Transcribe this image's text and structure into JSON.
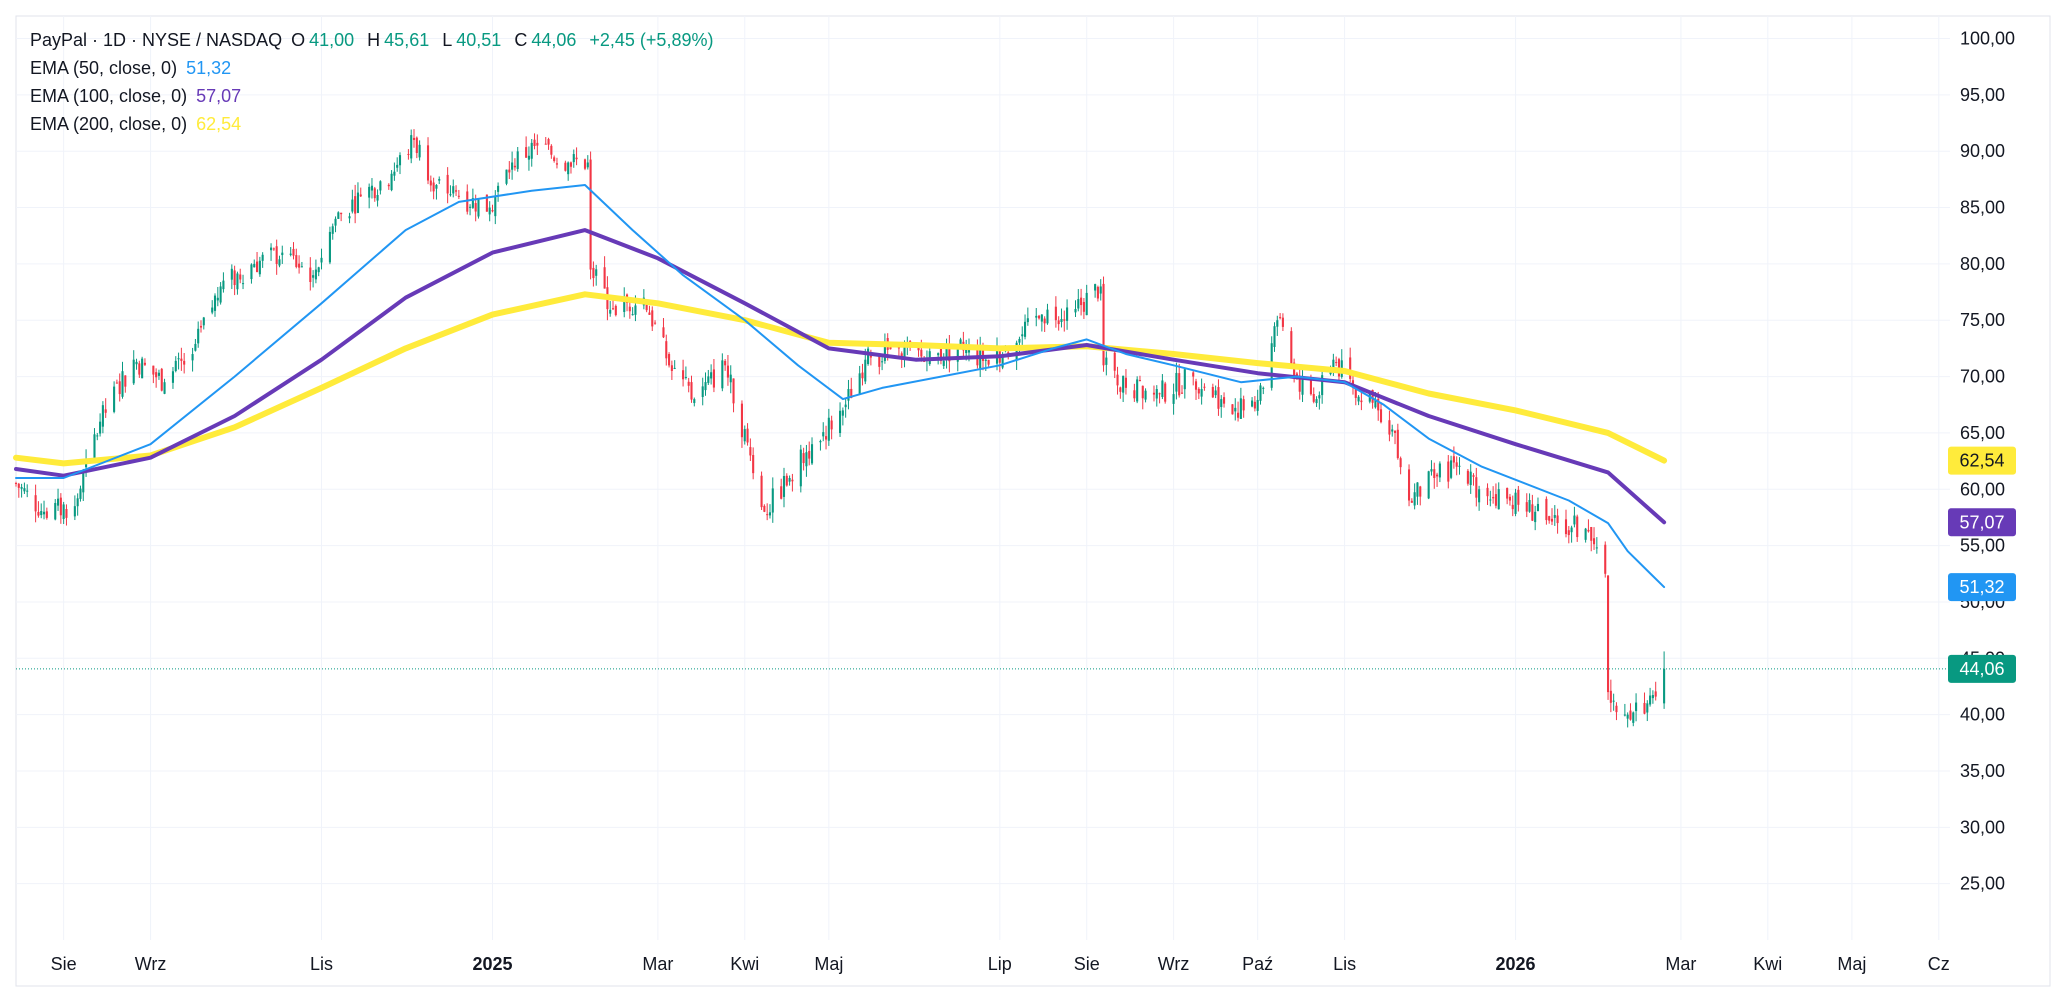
{
  "header": {
    "symbol_line": "PayPal · 1D · NYSE / NASDAQ",
    "ohlc": [
      {
        "key": "O",
        "value": "41,00"
      },
      {
        "key": "H",
        "value": "45,61"
      },
      {
        "key": "L",
        "value": "40,51"
      },
      {
        "key": "C",
        "value": "44,06"
      }
    ],
    "change": "+2,45 (+5,89%)"
  },
  "indicators": [
    {
      "label": "EMA (50, close, 0)",
      "value": "51,32",
      "color": "#2196f3"
    },
    {
      "label": "EMA (100, close, 0)",
      "value": "57,07",
      "color": "#673ab7"
    },
    {
      "label": "EMA (200, close, 0)",
      "value": "62,54",
      "color": "#ffeb3b"
    }
  ],
  "price_tags": [
    {
      "label": "62,54",
      "value": 62.54,
      "bg": "#ffeb3b",
      "fg": "#131722"
    },
    {
      "label": "57,07",
      "value": 57.07,
      "bg": "#673ab7",
      "fg": "#ffffff"
    },
    {
      "label": "51,32",
      "value": 51.32,
      "bg": "#2196f3",
      "fg": "#ffffff"
    },
    {
      "label": "44,06",
      "value": 44.06,
      "bg": "#089981",
      "fg": "#ffffff"
    }
  ],
  "colors": {
    "up": "#089981",
    "down": "#f23645",
    "grid": "#f0f3fa",
    "text": "#131722"
  },
  "chart_data": {
    "type": "candlestick",
    "grid": true,
    "y_axis": {
      "position": "right",
      "ylim": [
        20,
        102
      ],
      "ticks": [
        {
          "v": 100,
          "label": "100,00"
        },
        {
          "v": 95,
          "label": "95,00"
        },
        {
          "v": 90,
          "label": "90,00"
        },
        {
          "v": 85,
          "label": "85,00"
        },
        {
          "v": 80,
          "label": "80,00"
        },
        {
          "v": 75,
          "label": "75,00"
        },
        {
          "v": 70,
          "label": "70,00"
        },
        {
          "v": 65,
          "label": "65,00"
        },
        {
          "v": 60,
          "label": "60,00"
        },
        {
          "v": 55,
          "label": "55,00"
        },
        {
          "v": 50,
          "label": "50,00"
        },
        {
          "v": 45,
          "label": "45,00"
        },
        {
          "v": 40,
          "label": "40,00"
        },
        {
          "v": 35,
          "label": "35,00"
        },
        {
          "v": 30,
          "label": "30,00"
        },
        {
          "v": 25,
          "label": "25,00"
        }
      ]
    },
    "x_axis": {
      "domain": [
        "2024-07-15",
        "2026-06-05"
      ],
      "ticks": [
        {
          "date": "2024-08-01",
          "label": "Sie",
          "bold": false
        },
        {
          "date": "2024-09-01",
          "label": "Wrz",
          "bold": false
        },
        {
          "date": "2024-11-01",
          "label": "Lis",
          "bold": false
        },
        {
          "date": "2025-01-01",
          "label": "2025",
          "bold": true
        },
        {
          "date": "2025-03-01",
          "label": "Mar",
          "bold": false
        },
        {
          "date": "2025-04-01",
          "label": "Kwi",
          "bold": false
        },
        {
          "date": "2025-05-01",
          "label": "Maj",
          "bold": false
        },
        {
          "date": "2025-07-01",
          "label": "Lip",
          "bold": false
        },
        {
          "date": "2025-08-01",
          "label": "Sie",
          "bold": false
        },
        {
          "date": "2025-09-01",
          "label": "Wrz",
          "bold": false
        },
        {
          "date": "2025-10-01",
          "label": "Paź",
          "bold": false
        },
        {
          "date": "2025-11-01",
          "label": "Lis",
          "bold": false
        },
        {
          "date": "2026-01-01",
          "label": "2026",
          "bold": true
        },
        {
          "date": "2026-03-01",
          "label": "Mar",
          "bold": false
        },
        {
          "date": "2026-04-01",
          "label": "Kwi",
          "bold": false
        },
        {
          "date": "2026-05-01",
          "label": "Maj",
          "bold": false
        },
        {
          "date": "2026-06-01",
          "label": "Cz",
          "bold": false
        }
      ]
    },
    "last_price_line": 44.06,
    "close_path": [
      [
        "2024-07-15",
        60.5
      ],
      [
        "2024-07-25",
        58.0
      ],
      [
        "2024-08-05",
        58.5
      ],
      [
        "2024-08-14",
        66.0
      ],
      [
        "2024-08-26",
        71.5
      ],
      [
        "2024-09-06",
        69.5
      ],
      [
        "2024-09-16",
        72.0
      ],
      [
        "2024-09-26",
        78.0
      ],
      [
        "2024-10-08",
        80.0
      ],
      [
        "2024-10-18",
        81.0
      ],
      [
        "2024-10-29",
        79.0
      ],
      [
        "2024-11-06",
        84.0
      ],
      [
        "2024-11-15",
        86.0
      ],
      [
        "2024-11-26",
        88.0
      ],
      [
        "2024-12-04",
        91.0
      ],
      [
        "2024-12-12",
        87.0
      ],
      [
        "2024-12-20",
        86.0
      ],
      [
        "2024-12-31",
        85.0
      ],
      [
        "2025-01-08",
        89.0
      ],
      [
        "2025-01-17",
        90.5
      ],
      [
        "2025-01-28",
        89.0
      ],
      [
        "2025-02-04",
        89.0
      ],
      [
        "2025-02-05",
        79.5
      ],
      [
        "2025-02-13",
        76.0
      ],
      [
        "2025-02-24",
        77.0
      ],
      [
        "2025-03-06",
        70.5
      ],
      [
        "2025-03-14",
        68.0
      ],
      [
        "2025-03-25",
        71.0
      ],
      [
        "2025-04-03",
        63.0
      ],
      [
        "2025-04-08",
        58.0
      ],
      [
        "2025-04-17",
        61.0
      ],
      [
        "2025-04-25",
        64.0
      ],
      [
        "2025-05-06",
        67.0
      ],
      [
        "2025-05-14",
        71.5
      ],
      [
        "2025-05-26",
        72.5
      ],
      [
        "2025-06-05",
        71.5
      ],
      [
        "2025-06-16",
        72.5
      ],
      [
        "2025-06-26",
        71.5
      ],
      [
        "2025-07-07",
        73.0
      ],
      [
        "2025-07-16",
        75.5
      ],
      [
        "2025-07-28",
        76.0
      ],
      [
        "2025-08-06",
        78.0
      ],
      [
        "2025-08-07",
        71.0
      ],
      [
        "2025-08-15",
        69.0
      ],
      [
        "2025-08-27",
        68.5
      ],
      [
        "2025-09-08",
        70.0
      ],
      [
        "2025-09-18",
        68.0
      ],
      [
        "2025-09-26",
        67.0
      ],
      [
        "2025-10-03",
        69.0
      ],
      [
        "2025-10-08",
        75.0
      ],
      [
        "2025-10-14",
        70.0
      ],
      [
        "2025-10-22",
        68.0
      ],
      [
        "2025-10-28",
        71.5
      ],
      [
        "2025-11-04",
        69.0
      ],
      [
        "2025-11-13",
        67.0
      ],
      [
        "2025-11-19",
        65.0
      ],
      [
        "2025-11-24",
        59.0
      ],
      [
        "2025-12-03",
        61.0
      ],
      [
        "2025-12-11",
        62.0
      ],
      [
        "2025-12-19",
        60.0
      ],
      [
        "2025-12-30",
        59.0
      ],
      [
        "2026-01-08",
        58.0
      ],
      [
        "2026-01-16",
        57.0
      ],
      [
        "2026-01-26",
        56.5
      ],
      [
        "2026-02-02",
        52.5
      ],
      [
        "2026-02-03",
        42.0
      ],
      [
        "2026-02-10",
        40.0
      ],
      [
        "2026-02-17",
        41.0
      ],
      [
        "2026-02-20",
        41.6
      ],
      [
        "2026-02-23",
        44.06
      ]
    ],
    "series": [
      {
        "name": "EMA (50, close, 0)",
        "color": "#2196f3",
        "width": 2,
        "points": [
          [
            "2024-07-15",
            61.0
          ],
          [
            "2024-08-01",
            61.0
          ],
          [
            "2024-09-01",
            64.0
          ],
          [
            "2024-10-01",
            70.0
          ],
          [
            "2024-11-01",
            76.5
          ],
          [
            "2024-12-01",
            83.0
          ],
          [
            "2024-12-20",
            85.5
          ],
          [
            "2025-01-15",
            86.5
          ],
          [
            "2025-02-03",
            87.0
          ],
          [
            "2025-02-20",
            83.0
          ],
          [
            "2025-03-10",
            79.0
          ],
          [
            "2025-04-01",
            75.0
          ],
          [
            "2025-04-20",
            71.0
          ],
          [
            "2025-05-06",
            68.0
          ],
          [
            "2025-05-20",
            69.0
          ],
          [
            "2025-06-10",
            70.0
          ],
          [
            "2025-07-01",
            71.0
          ],
          [
            "2025-07-20",
            72.5
          ],
          [
            "2025-08-01",
            73.3
          ],
          [
            "2025-08-15",
            72.0
          ],
          [
            "2025-09-01",
            71.0
          ],
          [
            "2025-09-25",
            69.5
          ],
          [
            "2025-10-15",
            70.0
          ],
          [
            "2025-11-01",
            69.5
          ],
          [
            "2025-11-15",
            67.5
          ],
          [
            "2025-12-01",
            64.5
          ],
          [
            "2025-12-20",
            62.0
          ],
          [
            "2026-01-20",
            59.0
          ],
          [
            "2026-02-03",
            57.0
          ],
          [
            "2026-02-10",
            54.5
          ],
          [
            "2026-02-23",
            51.32
          ]
        ]
      },
      {
        "name": "EMA (100, close, 0)",
        "color": "#673ab7",
        "width": 4,
        "points": [
          [
            "2024-07-15",
            61.8
          ],
          [
            "2024-08-01",
            61.2
          ],
          [
            "2024-09-01",
            62.8
          ],
          [
            "2024-10-01",
            66.5
          ],
          [
            "2024-11-01",
            71.5
          ],
          [
            "2024-12-01",
            77.0
          ],
          [
            "2025-01-01",
            81.0
          ],
          [
            "2025-02-03",
            83.0
          ],
          [
            "2025-03-01",
            80.5
          ],
          [
            "2025-04-01",
            76.5
          ],
          [
            "2025-05-01",
            72.5
          ],
          [
            "2025-06-01",
            71.5
          ],
          [
            "2025-07-01",
            71.8
          ],
          [
            "2025-08-01",
            72.8
          ],
          [
            "2025-09-01",
            71.5
          ],
          [
            "2025-10-01",
            70.3
          ],
          [
            "2025-11-01",
            69.5
          ],
          [
            "2025-12-01",
            66.5
          ],
          [
            "2026-01-01",
            64.0
          ],
          [
            "2026-02-03",
            61.5
          ],
          [
            "2026-02-23",
            57.07
          ]
        ]
      },
      {
        "name": "EMA (200, close, 0)",
        "color": "#ffeb3b",
        "width": 6,
        "points": [
          [
            "2024-07-15",
            62.8
          ],
          [
            "2024-08-01",
            62.3
          ],
          [
            "2024-09-01",
            63.0
          ],
          [
            "2024-10-01",
            65.5
          ],
          [
            "2024-11-01",
            69.0
          ],
          [
            "2024-12-01",
            72.5
          ],
          [
            "2025-01-01",
            75.5
          ],
          [
            "2025-02-03",
            77.3
          ],
          [
            "2025-03-01",
            76.5
          ],
          [
            "2025-04-01",
            75.0
          ],
          [
            "2025-05-01",
            73.0
          ],
          [
            "2025-06-01",
            72.8
          ],
          [
            "2025-07-01",
            72.5
          ],
          [
            "2025-08-01",
            72.7
          ],
          [
            "2025-09-01",
            72.0
          ],
          [
            "2025-10-01",
            71.2
          ],
          [
            "2025-11-01",
            70.5
          ],
          [
            "2025-12-01",
            68.5
          ],
          [
            "2026-01-01",
            67.0
          ],
          [
            "2026-02-03",
            65.0
          ],
          [
            "2026-02-23",
            62.54
          ]
        ]
      }
    ]
  }
}
